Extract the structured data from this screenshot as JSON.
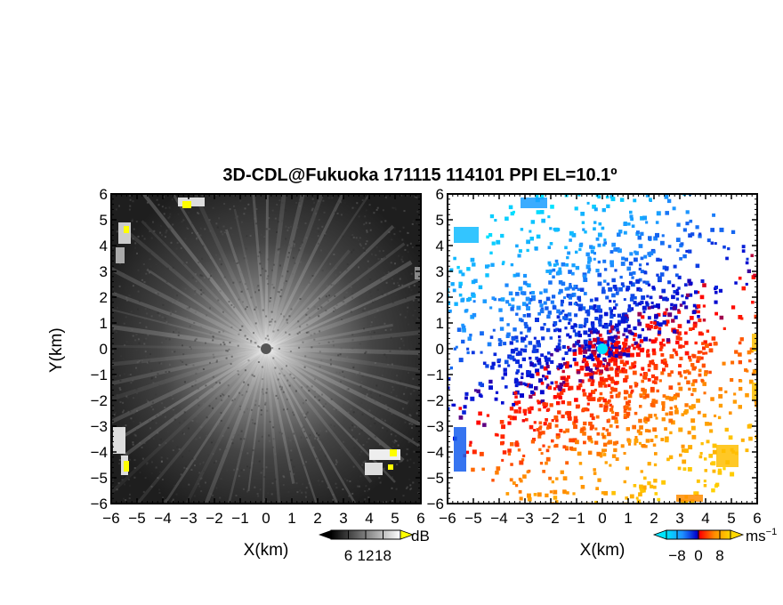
{
  "title": "3D-CDL@Fukuoka 171115 114101 PPI EL=10.1º",
  "chart_data": [
    {
      "type": "heatmap",
      "name": "reflectivity-ppi",
      "xlabel": "X(km)",
      "ylabel": "Y(km)",
      "xlim": [
        -6,
        6
      ],
      "ylim": [
        -6,
        6
      ],
      "x_ticks": [
        "−6",
        "−5",
        "−4",
        "−3",
        "−2",
        "−1",
        "0",
        "1",
        "2",
        "3",
        "4",
        "5",
        "6"
      ],
      "y_ticks": [
        "−6",
        "−5",
        "−4",
        "−3",
        "−2",
        "−1",
        "0",
        "1",
        "2",
        "3",
        "4",
        "5",
        "6"
      ],
      "colorbar": {
        "unit": "dB",
        "ticks": [
          "6",
          "12",
          "18"
        ],
        "range": [
          0,
          24
        ],
        "colors": [
          "#000000",
          "#ffffff"
        ]
      },
      "background": "#1e1e1e",
      "highlight_color": "#ffff00"
    },
    {
      "type": "heatmap",
      "name": "doppler-velocity-ppi",
      "xlabel": "X(km)",
      "ylabel": "",
      "xlim": [
        -6,
        6
      ],
      "ylim": [
        -6,
        6
      ],
      "x_ticks": [
        "−6",
        "−5",
        "−4",
        "−3",
        "−2",
        "−1",
        "0",
        "1",
        "2",
        "3",
        "4",
        "5",
        "6"
      ],
      "y_ticks": [
        "−6",
        "−5",
        "−4",
        "−3",
        "−2",
        "−1",
        "0",
        "1",
        "2",
        "3",
        "4",
        "5",
        "6"
      ],
      "colorbar": {
        "unit": "ms",
        "unit_exp": "−1",
        "ticks": [
          "−8",
          "0",
          "8"
        ],
        "range": [
          -12,
          12
        ],
        "colors": [
          "#00e5ff",
          "#1e90ff",
          "#0000cd",
          "#ff0000",
          "#ff8c00",
          "#ffd700"
        ]
      },
      "background": "#ffffff"
    }
  ]
}
